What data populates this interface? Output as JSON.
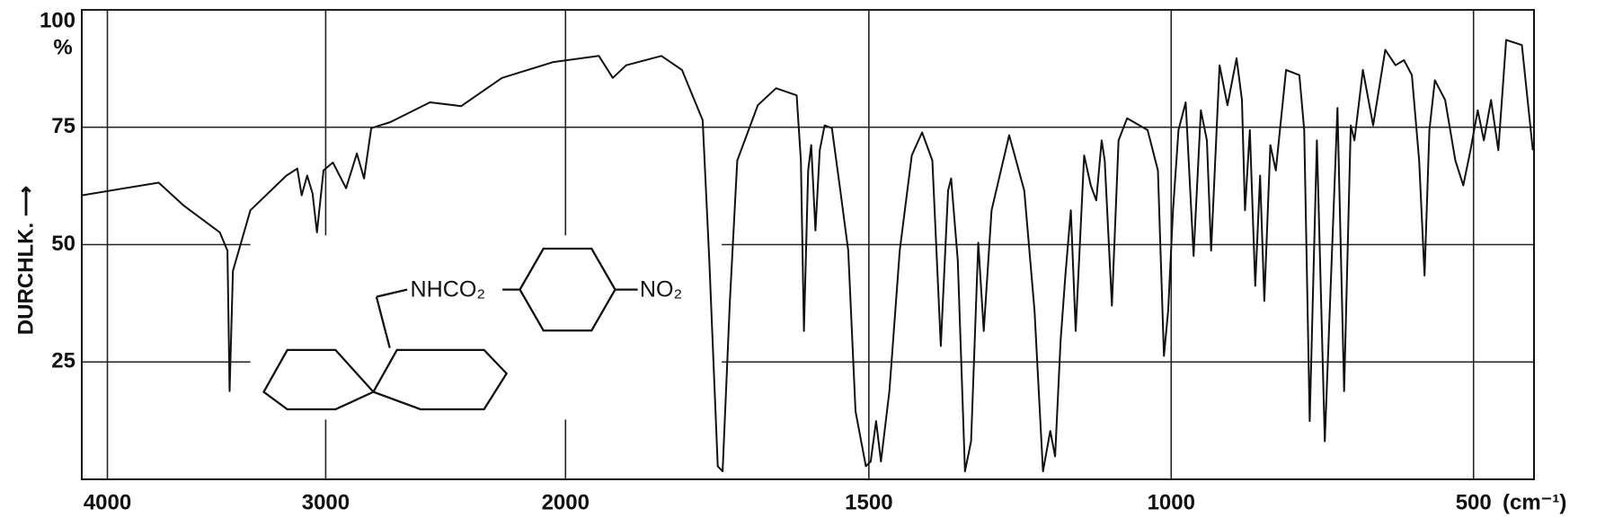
{
  "chart_data": {
    "type": "line",
    "ylabel": "DURCHLK. ⟶",
    "yunit": "%",
    "xlabel": "(cm⁻¹)",
    "annotations": [
      "NHCO₂",
      "NO₂"
    ],
    "xlim": [
      4110,
      400
    ],
    "ylim": [
      0,
      100
    ],
    "xticks": [
      4000,
      3000,
      2000,
      1500,
      1000,
      500
    ],
    "yticks": [
      25,
      50,
      75,
      100
    ],
    "grid": true,
    "color": "#111111",
    "x": [
      4110,
      3765,
      3650,
      3485,
      3450,
      3440,
      3425,
      3345,
      3180,
      3130,
      3110,
      3085,
      3060,
      3040,
      3010,
      2970,
      2915,
      2870,
      2840,
      2810,
      2730,
      2565,
      2435,
      2265,
      2050,
      1945,
      1922,
      1900,
      1842,
      1808,
      1774,
      1763,
      1749,
      1741,
      1729,
      1717,
      1683,
      1653,
      1619,
      1612,
      1607,
      1600,
      1595,
      1588,
      1581,
      1573,
      1561,
      1547,
      1534,
      1522,
      1505,
      1497,
      1488,
      1480,
      1466,
      1449,
      1429,
      1412,
      1395,
      1381,
      1369,
      1364,
      1353,
      1341,
      1331,
      1319,
      1310,
      1297,
      1268,
      1243,
      1226,
      1212,
      1200,
      1192,
      1183,
      1175,
      1166,
      1158,
      1144,
      1133,
      1124,
      1115,
      1110,
      1098,
      1087,
      1073,
      1039,
      1022,
      1012,
      1005,
      997,
      988,
      976,
      963,
      951,
      941,
      934,
      920,
      907,
      892,
      883,
      878,
      870,
      861,
      853,
      846,
      836,
      827,
      810,
      788,
      780,
      771,
      759,
      746,
      725,
      714,
      703,
      697,
      683,
      666,
      646,
      629,
      615,
      602,
      590,
      581,
      573,
      564,
      547,
      530,
      517,
      505,
      493,
      483,
      471,
      459,
      446,
      420,
      402
    ],
    "values": [
      60.5,
      63.2,
      58.3,
      52.6,
      48.7,
      18.8,
      44.4,
      57.3,
      64.7,
      66.2,
      60.5,
      64.7,
      60.9,
      52.6,
      65.8,
      67.5,
      62,
      69.4,
      64.1,
      74.8,
      76.1,
      80.3,
      79.5,
      85.5,
      88.9,
      90.2,
      85.5,
      88.2,
      90.2,
      87.2,
      76.5,
      46.6,
      2.8,
      1.7,
      38,
      67.9,
      79.7,
      83.3,
      81.8,
      67.9,
      31.6,
      65.8,
      71.2,
      53,
      70.1,
      75.4,
      74.8,
      61.5,
      48.7,
      14.5,
      2.8,
      3.8,
      12.4,
      3.8,
      18.8,
      48.7,
      69,
      73.9,
      67.9,
      28.4,
      61.5,
      64.1,
      46.6,
      1.7,
      8.1,
      50.4,
      31.6,
      57.3,
      73.3,
      61.5,
      35.9,
      1.7,
      10.3,
      4.9,
      29.5,
      43.4,
      57.3,
      31.6,
      69,
      62.6,
      59.4,
      72.2,
      67.9,
      37,
      72.2,
      76.9,
      74.4,
      65.8,
      26.3,
      35.9,
      57.3,
      74.4,
      80.3,
      47.6,
      78.6,
      72.2,
      48.7,
      88.2,
      79.7,
      89.7,
      80.8,
      57.3,
      74.4,
      41.2,
      64.7,
      38,
      71.2,
      65.8,
      87.2,
      86.1,
      74.4,
      12.4,
      72.2,
      8.1,
      79.1,
      18.8,
      75.4,
      72.2,
      87.2,
      75.4,
      91.5,
      88.2,
      89.3,
      86.1,
      67.9,
      43.4,
      74.4,
      85,
      80.8,
      67.9,
      62.6,
      70.1,
      78.6,
      72.2,
      80.8,
      70.1,
      93.6,
      92.5,
      70.1
    ]
  }
}
